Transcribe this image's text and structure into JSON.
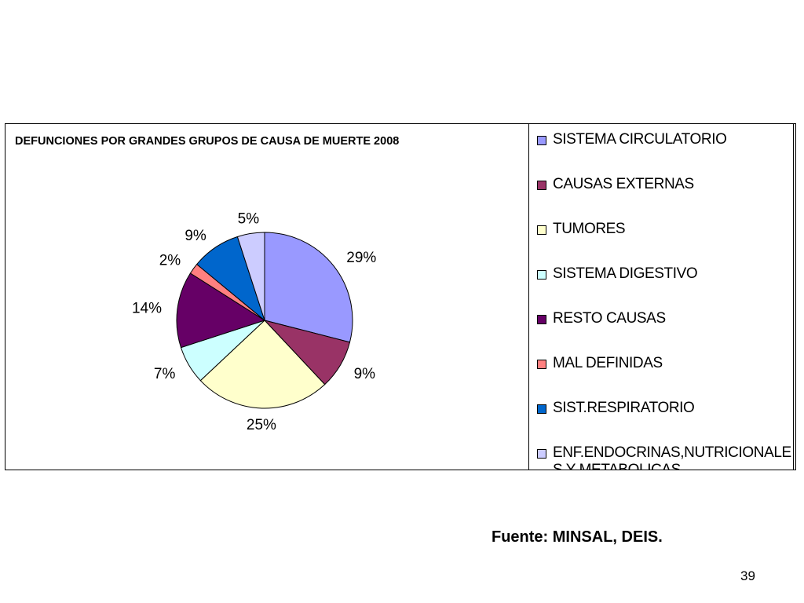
{
  "chart_data": {
    "type": "pie",
    "title": "DEFUNCIONES POR GRANDES GRUPOS DE CAUSA DE MUERTE 2008",
    "categories": [
      "SISTEMA CIRCULATORIO",
      "CAUSAS EXTERNAS",
      "TUMORES",
      "SISTEMA DIGESTIVO",
      "RESTO CAUSAS",
      "MAL DEFINIDAS",
      "SIST.RESPIRATORIO",
      "ENF.ENDOCRINAS,NUTRICIONALES Y METABOLICAS"
    ],
    "values": [
      29,
      9,
      25,
      7,
      14,
      2,
      9,
      5
    ],
    "labels": [
      "29%",
      "9%",
      "25%",
      "7%",
      "14%",
      "2%",
      "9%",
      "5%"
    ],
    "colors": [
      "#9999FF",
      "#993366",
      "#FFFFCC",
      "#CCFFFF",
      "#660066",
      "#FF8080",
      "#0066CC",
      "#CCCCFF"
    ],
    "legend_position": "right"
  },
  "source_note": "Fuente: MINSAL, DEIS.",
  "page_number": "39"
}
